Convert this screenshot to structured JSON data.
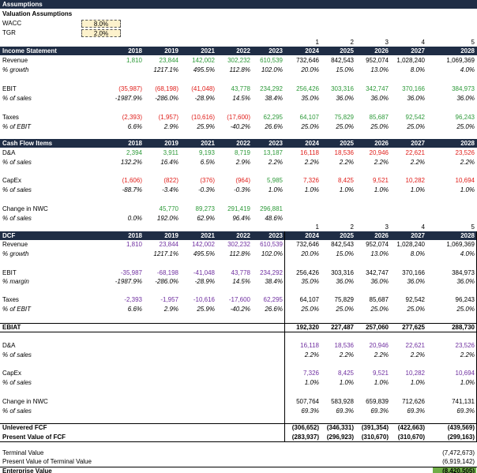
{
  "header": {
    "title": "Assumptions"
  },
  "assumptions": {
    "title": "Valuation Assumptions",
    "items": [
      {
        "label": "WACC",
        "value": "8.0%"
      },
      {
        "label": "TGR",
        "value": "2.0%"
      }
    ]
  },
  "rows": [
    {
      "cells": [
        null,
        null,
        null,
        null,
        null,
        "1",
        "2",
        "3",
        "4",
        "5"
      ]
    },
    {
      "label": "Income Statement",
      "cells": [
        "2018",
        "2019",
        "2021",
        "2022",
        "2023",
        "2024",
        "2025",
        "2026",
        "2027",
        "2028"
      ]
    },
    {
      "label": "Revenue",
      "cells": [
        "1,810",
        "23,844",
        "142,002",
        "302,232",
        "610,539",
        "732,646",
        "842,543",
        "952,074",
        "1,028,240",
        "1,069,369"
      ]
    },
    {
      "label": "% growth",
      "cells": [
        null,
        "1217.1%",
        "495.5%",
        "112.8%",
        "102.0%",
        "20.0%",
        "15.0%",
        "13.0%",
        "8.0%",
        "4.0%"
      ]
    },
    {
      "label": "EBIT",
      "cells": [
        "(35,987)",
        "(68,198)",
        "(41,048)",
        "43,778",
        "234,292",
        "256,426",
        "303,316",
        "342,747",
        "370,166",
        "384,973"
      ]
    },
    {
      "label": "% of sales",
      "cells": [
        "-1987.9%",
        "-286.0%",
        "-28.9%",
        "14.5%",
        "38.4%",
        "35.0%",
        "36.0%",
        "36.0%",
        "36.0%",
        "36.0%"
      ]
    },
    {
      "label": "Taxes",
      "cells": [
        "(2,393)",
        "(1,957)",
        "(10,616)",
        "(17,600)",
        "62,295",
        "64,107",
        "75,829",
        "85,687",
        "92,542",
        "96,243"
      ]
    },
    {
      "label": "% of EBIT",
      "cells": [
        "6.6%",
        "2.9%",
        "25.9%",
        "-40.2%",
        "26.6%",
        "25.0%",
        "25.0%",
        "25.0%",
        "25.0%",
        "25.0%"
      ]
    },
    {
      "label": "Cash Flow Items",
      "cells": [
        "2018",
        "2019",
        "2021",
        "2022",
        "2023",
        "2024",
        "2025",
        "2026",
        "2027",
        "2028"
      ]
    },
    {
      "label": "D&A",
      "cells": [
        "2,394",
        "3,911",
        "9,193",
        "8,719",
        "13,187",
        "16,118",
        "18,536",
        "20,946",
        "22,621",
        "23,526"
      ]
    },
    {
      "label": "% of sales",
      "cells": [
        "132.2%",
        "16.4%",
        "6.5%",
        "2.9%",
        "2.2%",
        "2.2%",
        "2.2%",
        "2.2%",
        "2.2%",
        "2.2%"
      ]
    },
    {
      "label": "CapEx",
      "cells": [
        "(1,606)",
        "(822)",
        "(376)",
        "(964)",
        "5,985",
        "7,326",
        "8,425",
        "9,521",
        "10,282",
        "10,694"
      ]
    },
    {
      "label": "% of sales",
      "cells": [
        "-88.7%",
        "-3.4%",
        "-0.3%",
        "-0.3%",
        "1.0%",
        "1.0%",
        "1.0%",
        "1.0%",
        "1.0%",
        "1.0%"
      ]
    },
    {
      "label": "Change in NWC",
      "cells": [
        null,
        "45,770",
        "89,273",
        "291,419",
        "296,881",
        null,
        null,
        null,
        null,
        null
      ]
    },
    {
      "label": "% of sales",
      "cells": [
        "0.0%",
        "192.0%",
        "62.9%",
        "96.4%",
        "48.6%",
        null,
        null,
        null,
        null,
        null
      ]
    },
    {
      "cells": [
        null,
        null,
        null,
        null,
        null,
        "1",
        "2",
        "3",
        "4",
        "5"
      ]
    },
    {
      "label": "DCF",
      "cells": [
        "2018",
        "2019",
        "2021",
        "2022",
        "2023",
        "2024",
        "2025",
        "2026",
        "2027",
        "2028"
      ]
    },
    {
      "label": "Revenue",
      "cells": [
        "1,810",
        "23,844",
        "142,002",
        "302,232",
        "610,539",
        "732,646",
        "842,543",
        "952,074",
        "1,028,240",
        "1,069,369"
      ]
    },
    {
      "label": "% growth",
      "cells": [
        null,
        "1217.1%",
        "495.5%",
        "112.8%",
        "102.0%",
        "20.0%",
        "15.0%",
        "13.0%",
        "8.0%",
        "4.0%"
      ]
    },
    {
      "label": "EBIT",
      "cells": [
        "-35,987",
        "-68,198",
        "-41,048",
        "43,778",
        "234,292",
        "256,426",
        "303,316",
        "342,747",
        "370,166",
        "384,973"
      ]
    },
    {
      "label": "% margin",
      "cells": [
        "-1987.9%",
        "-286.0%",
        "-28.9%",
        "14.5%",
        "38.4%",
        "35.0%",
        "36.0%",
        "36.0%",
        "36.0%",
        "36.0%"
      ]
    },
    {
      "label": "Taxes",
      "cells": [
        "-2,393",
        "-1,957",
        "-10,616",
        "-17,600",
        "62,295",
        "64,107",
        "75,829",
        "85,687",
        "92,542",
        "96,243"
      ]
    },
    {
      "label": "% of EBIT",
      "cells": [
        "6.6%",
        "2.9%",
        "25.9%",
        "-40.2%",
        "26.6%",
        "25.0%",
        "25.0%",
        "25.0%",
        "25.0%",
        "25.0%"
      ]
    },
    {
      "label": "EBIAT",
      "cells": [
        null,
        null,
        null,
        null,
        null,
        "192,320",
        "227,487",
        "257,060",
        "277,625",
        "288,730"
      ]
    },
    {
      "label": "D&A",
      "cells": [
        null,
        null,
        null,
        null,
        null,
        "16,118",
        "18,536",
        "20,946",
        "22,621",
        "23,526"
      ]
    },
    {
      "label": "% of sales",
      "cells": [
        null,
        null,
        null,
        null,
        null,
        "2.2%",
        "2.2%",
        "2.2%",
        "2.2%",
        "2.2%"
      ]
    },
    {
      "label": "CapEx",
      "cells": [
        null,
        null,
        null,
        null,
        null,
        "7,326",
        "8,425",
        "9,521",
        "10,282",
        "10,694"
      ]
    },
    {
      "label": "% of sales",
      "cells": [
        null,
        null,
        null,
        null,
        null,
        "1.0%",
        "1.0%",
        "1.0%",
        "1.0%",
        "1.0%"
      ]
    },
    {
      "label": "Change in NWC",
      "cells": [
        null,
        null,
        null,
        null,
        null,
        "507,764",
        "583,928",
        "659,839",
        "712,626",
        "741,131"
      ]
    },
    {
      "label": "% of sales",
      "cells": [
        null,
        null,
        null,
        null,
        null,
        "69.3%",
        "69.3%",
        "69.3%",
        "69.3%",
        "69.3%"
      ]
    },
    {
      "label": "Unlevered FCF",
      "cells": [
        null,
        null,
        null,
        null,
        null,
        "(306,652)",
        "(346,331)",
        "(391,354)",
        "(422,663)",
        "(439,569)"
      ]
    },
    {
      "label": "Present Value of FCF",
      "cells": [
        null,
        null,
        null,
        null,
        null,
        "(283,937)",
        "(296,923)",
        "(310,670)",
        "(310,670)",
        "(299,163)"
      ]
    },
    {
      "label": "Terminal Value",
      "cells": [
        null,
        null,
        null,
        null,
        null,
        null,
        null,
        null,
        null,
        "(7,472,673)"
      ]
    },
    {
      "label": "Present Value of Terminal Value",
      "cells": [
        null,
        null,
        null,
        null,
        null,
        null,
        null,
        null,
        null,
        "(6,919,142)"
      ]
    },
    {
      "label": "Enterprise Value",
      "cells": [
        null,
        null,
        null,
        null,
        null,
        null,
        null,
        null,
        null,
        "(8,420,505)"
      ]
    }
  ]
}
